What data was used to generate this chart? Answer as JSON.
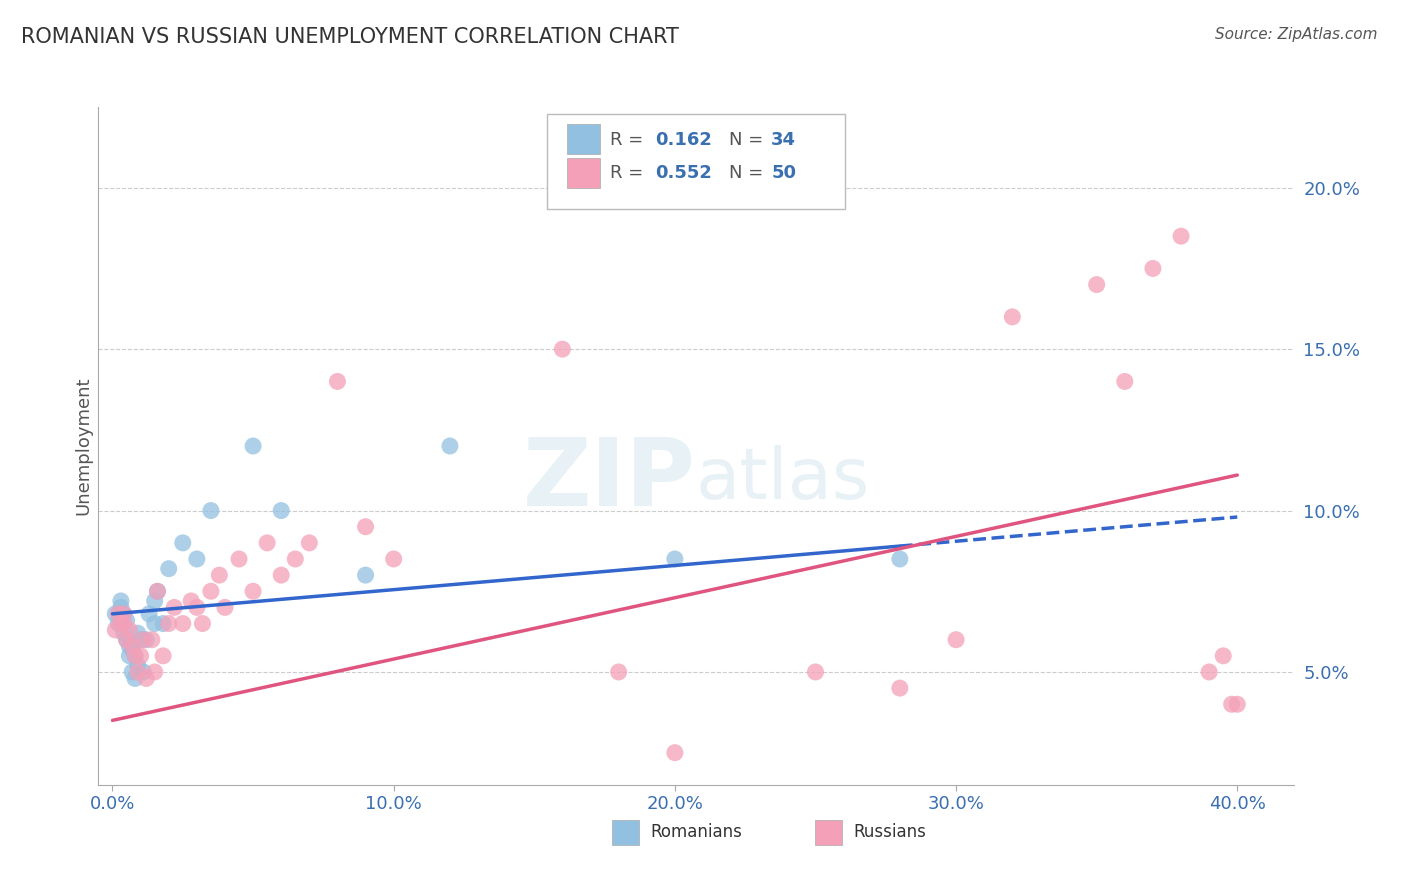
{
  "title": "ROMANIAN VS RUSSIAN UNEMPLOYMENT CORRELATION CHART",
  "source": "Source: ZipAtlas.com",
  "ylabel": "Unemployment",
  "blue_color": "#92c0e0",
  "pink_color": "#f4a0b8",
  "blue_line_color": "#3366cc",
  "pink_line_color": "#e05580",
  "label_color": "#3a6fb0",
  "legend_label_blue": "Romanians",
  "legend_label_pink": "Russians",
  "blue_x": [
    0.001,
    0.002,
    0.003,
    0.003,
    0.004,
    0.004,
    0.005,
    0.005,
    0.006,
    0.006,
    0.007,
    0.007,
    0.008,
    0.008,
    0.009,
    0.009,
    0.01,
    0.011,
    0.012,
    0.013,
    0.015,
    0.015,
    0.016,
    0.018,
    0.02,
    0.025,
    0.03,
    0.035,
    0.05,
    0.06,
    0.09,
    0.12,
    0.2,
    0.28
  ],
  "blue_y": [
    0.068,
    0.065,
    0.07,
    0.072,
    0.068,
    0.062,
    0.066,
    0.06,
    0.058,
    0.055,
    0.057,
    0.05,
    0.055,
    0.048,
    0.052,
    0.062,
    0.06,
    0.05,
    0.06,
    0.068,
    0.072,
    0.065,
    0.075,
    0.065,
    0.082,
    0.09,
    0.085,
    0.1,
    0.12,
    0.1,
    0.08,
    0.12,
    0.085,
    0.085
  ],
  "pink_x": [
    0.001,
    0.002,
    0.003,
    0.004,
    0.004,
    0.005,
    0.006,
    0.007,
    0.008,
    0.009,
    0.01,
    0.011,
    0.012,
    0.014,
    0.015,
    0.016,
    0.018,
    0.02,
    0.022,
    0.025,
    0.028,
    0.03,
    0.032,
    0.035,
    0.038,
    0.04,
    0.045,
    0.05,
    0.055,
    0.06,
    0.065,
    0.07,
    0.08,
    0.09,
    0.1,
    0.16,
    0.18,
    0.2,
    0.25,
    0.28,
    0.3,
    0.32,
    0.35,
    0.36,
    0.37,
    0.38,
    0.39,
    0.395,
    0.398,
    0.4
  ],
  "pink_y": [
    0.063,
    0.068,
    0.065,
    0.065,
    0.068,
    0.06,
    0.063,
    0.058,
    0.055,
    0.05,
    0.055,
    0.06,
    0.048,
    0.06,
    0.05,
    0.075,
    0.055,
    0.065,
    0.07,
    0.065,
    0.072,
    0.07,
    0.065,
    0.075,
    0.08,
    0.07,
    0.085,
    0.075,
    0.09,
    0.08,
    0.085,
    0.09,
    0.14,
    0.095,
    0.085,
    0.15,
    0.05,
    0.025,
    0.05,
    0.045,
    0.06,
    0.16,
    0.17,
    0.14,
    0.175,
    0.185,
    0.05,
    0.055,
    0.04,
    0.04
  ],
  "xlim": [
    -0.005,
    0.42
  ],
  "ylim": [
    0.015,
    0.225
  ],
  "xticks": [
    0.0,
    0.1,
    0.2,
    0.3,
    0.4
  ],
  "yticks": [
    0.05,
    0.1,
    0.15,
    0.2
  ],
  "ytick_labels": [
    "5.0%",
    "10.0%",
    "15.0%",
    "20.0%"
  ],
  "xtick_labels": [
    "0.0%",
    "10.0%",
    "20.0%",
    "30.0%",
    "40.0%"
  ],
  "blue_line_x_end": 0.28,
  "blue_line_x_dash_end": 0.4,
  "blue_line_x_start": 0.0,
  "pink_line_x_start": 0.0,
  "pink_line_x_end": 0.4,
  "blue_intercept": 0.068,
  "blue_slope": 0.075,
  "pink_intercept": 0.035,
  "pink_slope": 0.19
}
